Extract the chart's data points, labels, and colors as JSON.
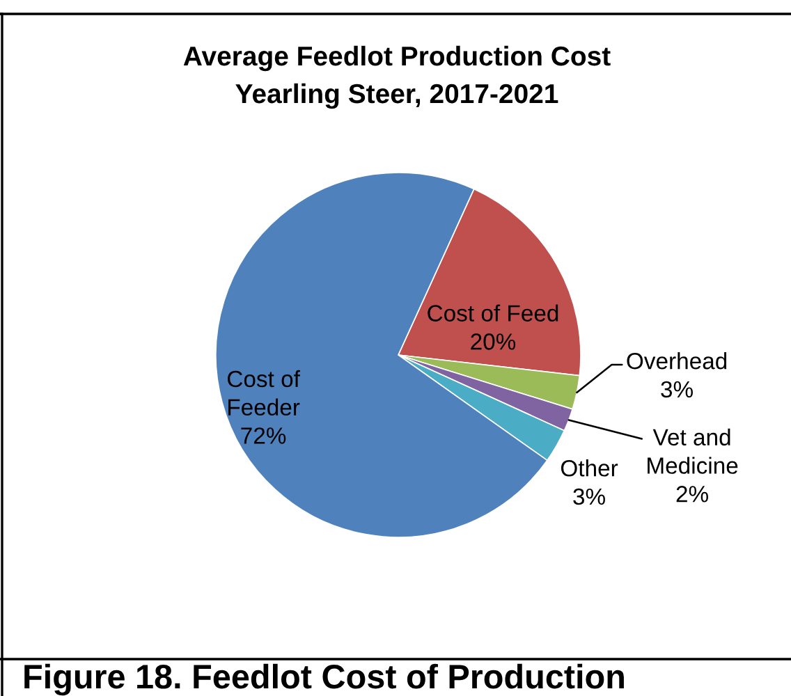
{
  "chart_data": {
    "type": "pie",
    "title": "Average Feedlot Production Cost",
    "subtitle": "Yearling Steer, 2017-2021",
    "categories": [
      "Cost of Feed",
      "Overhead",
      "Vet and Medicine",
      "Other",
      "Cost of Feeder"
    ],
    "values": [
      20,
      3,
      2,
      3,
      72
    ],
    "colors": [
      "#c0504d",
      "#9bbb59",
      "#8064a2",
      "#4bacc6",
      "#4f81bd"
    ],
    "value_labels": [
      "20%",
      "3%",
      "2%",
      "3%",
      "72%"
    ],
    "annotations": [
      "Figure 18. Feedlot Cost of Production"
    ]
  }
}
